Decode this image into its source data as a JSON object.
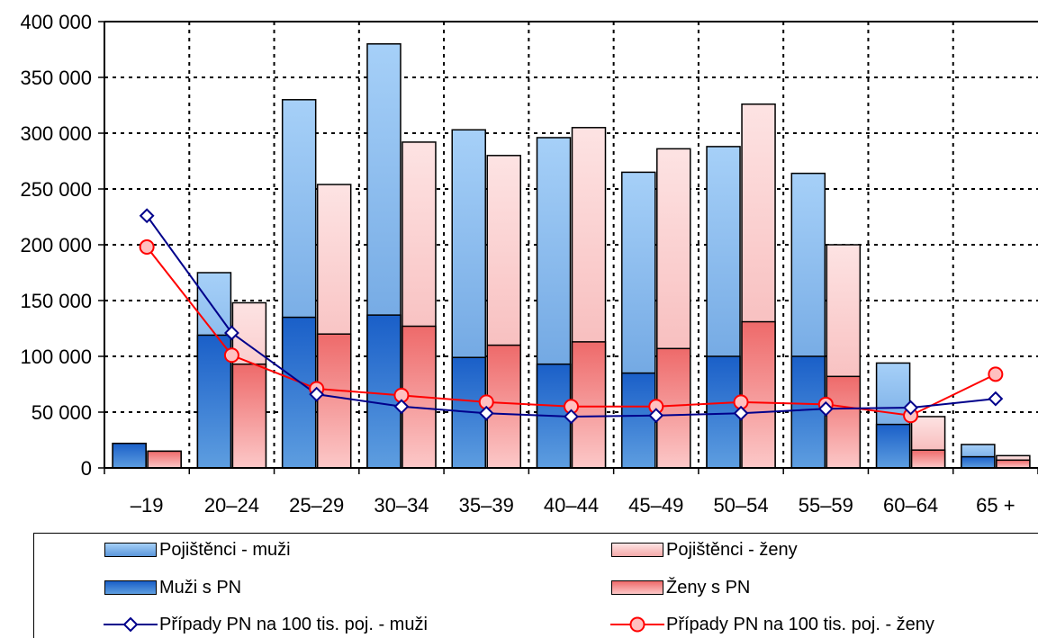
{
  "chart_data": {
    "type": "bar",
    "categories": [
      "–19",
      "20–24",
      "25–29",
      "30–34",
      "35–39",
      "40–44",
      "45–49",
      "50–54",
      "55–59",
      "60–64",
      "65 +"
    ],
    "ylim": [
      0,
      400000
    ],
    "y_ticks": [
      0,
      50000,
      100000,
      150000,
      200000,
      250000,
      300000,
      350000,
      400000
    ],
    "y_tick_labels": [
      "0",
      "50 000",
      "100 000",
      "150 000",
      "200 000",
      "250 000",
      "300 000",
      "350 000",
      "400 000"
    ],
    "grid": "dotted",
    "legend_position": "bottom",
    "bar_series": [
      {
        "name": "Pojištěnci - muži",
        "values": [
          22000,
          175000,
          330000,
          380000,
          303000,
          296000,
          265000,
          288000,
          264000,
          94000,
          21000
        ]
      },
      {
        "name": "Pojištěnci - ženy",
        "values": [
          15000,
          148000,
          254000,
          292000,
          280000,
          305000,
          286000,
          326000,
          200000,
          46000,
          11000
        ]
      }
    ],
    "overlay_series": [
      {
        "name": "Muži s PN",
        "values": [
          22000,
          119000,
          135000,
          137000,
          99000,
          93000,
          85000,
          100000,
          100000,
          39000,
          10000
        ]
      },
      {
        "name": "Ženy s PN",
        "values": [
          15000,
          93000,
          120000,
          127000,
          110000,
          113000,
          107000,
          131000,
          82000,
          16000,
          7000
        ]
      }
    ],
    "line_series": [
      {
        "name": "Případy PN na 100 tis. poj. - muži",
        "values": [
          226000,
          121000,
          66000,
          55000,
          49000,
          46000,
          47000,
          49000,
          53000,
          54000,
          62000
        ]
      },
      {
        "name": "Případy PN na 100 tis. poj. - ženy",
        "values": [
          198000,
          101000,
          71000,
          65000,
          59000,
          55000,
          55000,
          59000,
          57000,
          47000,
          84000
        ]
      }
    ]
  },
  "legend": {
    "ins_men": "Pojištěnci - muži",
    "ins_women": "Pojištěnci - ženy",
    "pn_men": "Muži s PN",
    "pn_women": "Ženy s PN",
    "rate_men": "Případy PN na 100 tis. poj. - muži",
    "rate_women": "Případy PN na 100 tis. poj. - ženy"
  },
  "colors": {
    "ins_men_top": "#a6d0f8",
    "ins_men_bottom": "#5c97da",
    "ins_women_top": "#fde3e3",
    "ins_women_bottom": "#f5aaaa",
    "pn_men_top": "#1a5fc8",
    "pn_men_bottom": "#5e9ee0",
    "pn_women_top": "#ee6a6a",
    "pn_women_bottom": "#fcc8c8",
    "line_men": "#00008b",
    "line_women": "#ff0000",
    "marker_women_fill": "#ffc0c0",
    "marker_men_fill": "#ffffff"
  }
}
